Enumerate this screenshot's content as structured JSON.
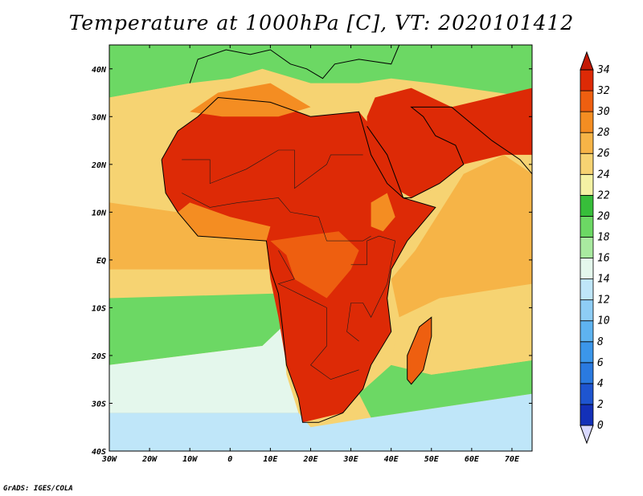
{
  "title": "Temperature at 1000hPa [C], VT: 2020101412",
  "credit": "GrADS: IGES/COLA",
  "map": {
    "lon_range": [
      -30,
      75
    ],
    "lat_range": [
      -40,
      45
    ],
    "lon_ticks": [
      {
        "lon": -30,
        "label": "30W"
      },
      {
        "lon": -20,
        "label": "20W"
      },
      {
        "lon": -10,
        "label": "10W"
      },
      {
        "lon": 0,
        "label": "0"
      },
      {
        "lon": 10,
        "label": "10E"
      },
      {
        "lon": 20,
        "label": "20E"
      },
      {
        "lon": 30,
        "label": "30E"
      },
      {
        "lon": 40,
        "label": "40E"
      },
      {
        "lon": 50,
        "label": "50E"
      },
      {
        "lon": 60,
        "label": "60E"
      },
      {
        "lon": 70,
        "label": "70E"
      }
    ],
    "lat_ticks": [
      {
        "lat": 40,
        "label": "40N"
      },
      {
        "lat": 30,
        "label": "30N"
      },
      {
        "lat": 20,
        "label": "20N"
      },
      {
        "lat": 10,
        "label": "10N"
      },
      {
        "lat": 0,
        "label": "EQ"
      },
      {
        "lat": -10,
        "label": "10S"
      },
      {
        "lat": -20,
        "label": "20S"
      },
      {
        "lat": -30,
        "label": "30S"
      },
      {
        "lat": -40,
        "label": "40S"
      }
    ]
  },
  "colorbar": {
    "levels": [
      0,
      2,
      4,
      6,
      8,
      10,
      12,
      14,
      16,
      18,
      20,
      22,
      24,
      26,
      28,
      30,
      32,
      34
    ],
    "labels": [
      "0",
      "2",
      "4",
      "6",
      "8",
      "10",
      "12",
      "14",
      "16",
      "18",
      "20",
      "22",
      "24",
      "26",
      "28",
      "30",
      "32",
      "34"
    ],
    "colors": [
      "#0b1a78",
      "#1330b8",
      "#1e55d0",
      "#2a7ae0",
      "#3b96ea",
      "#5eb3f0",
      "#8ecdf5",
      "#bfe6f9",
      "#e4f7ec",
      "#a9eaa0",
      "#6cd864",
      "#37be3a",
      "#f4f2a4",
      "#f6d372",
      "#f6b447",
      "#f48d22",
      "#ee5f10",
      "#dd2a06",
      "#c41a05"
    ]
  },
  "regions": [
    {
      "name": "north-coast-green",
      "temp": 19,
      "coords": [
        [
          -30,
          45
        ],
        [
          75,
          45
        ],
        [
          75,
          34
        ],
        [
          50,
          37
        ],
        [
          40,
          38
        ],
        [
          32,
          37
        ],
        [
          20,
          37
        ],
        [
          8,
          40
        ],
        [
          0,
          38
        ],
        [
          -10,
          37
        ],
        [
          -30,
          34
        ]
      ]
    },
    {
      "name": "atlantic-north-yellow",
      "temp": 24,
      "coords": [
        [
          -30,
          34
        ],
        [
          -10,
          37
        ],
        [
          -8,
          28
        ],
        [
          -15,
          23
        ],
        [
          -16,
          15
        ],
        [
          -13,
          10
        ],
        [
          -30,
          12
        ]
      ]
    },
    {
      "name": "atlantic-tropical",
      "temp": 27,
      "coords": [
        [
          -30,
          12
        ],
        [
          -13,
          10
        ],
        [
          -8,
          5
        ],
        [
          9,
          4
        ],
        [
          10,
          -2
        ],
        [
          -30,
          -2
        ]
      ]
    },
    {
      "name": "atlantic-equatorial",
      "temp": 24,
      "coords": [
        [
          -30,
          -2
        ],
        [
          10,
          -2
        ],
        [
          12,
          -7
        ],
        [
          -30,
          -8
        ]
      ]
    },
    {
      "name": "atlantic-green-band",
      "temp": 19,
      "coords": [
        [
          -30,
          -8
        ],
        [
          12,
          -7
        ],
        [
          13,
          -14
        ],
        [
          8,
          -18
        ],
        [
          -30,
          -22
        ]
      ]
    },
    {
      "name": "atlantic-lightblue",
      "temp": 15,
      "coords": [
        [
          -30,
          -22
        ],
        [
          8,
          -18
        ],
        [
          13,
          -14
        ],
        [
          14,
          -24
        ],
        [
          17,
          -32
        ],
        [
          -30,
          -32
        ]
      ]
    },
    {
      "name": "southern-ocean-blue",
      "temp": 12,
      "coords": [
        [
          -30,
          -32
        ],
        [
          17,
          -32
        ],
        [
          20,
          -35
        ],
        [
          35,
          -33
        ],
        [
          75,
          -28
        ],
        [
          75,
          -40
        ],
        [
          -30,
          -40
        ]
      ]
    },
    {
      "name": "indian-ocean-south",
      "temp": 19,
      "coords": [
        [
          35,
          -33
        ],
        [
          32,
          -28
        ],
        [
          40,
          -22
        ],
        [
          50,
          -24
        ],
        [
          75,
          -21
        ],
        [
          75,
          -28
        ]
      ]
    },
    {
      "name": "indian-ocean-mid",
      "temp": 24,
      "coords": [
        [
          40,
          -22
        ],
        [
          42,
          -12
        ],
        [
          52,
          -8
        ],
        [
          75,
          -5
        ],
        [
          75,
          -21
        ],
        [
          50,
          -24
        ]
      ]
    },
    {
      "name": "indian-ocean-warm",
      "temp": 27,
      "coords": [
        [
          40,
          -4
        ],
        [
          46,
          2
        ],
        [
          52,
          10
        ],
        [
          58,
          18
        ],
        [
          68,
          22
        ],
        [
          75,
          18
        ],
        [
          75,
          -5
        ],
        [
          52,
          -8
        ],
        [
          42,
          -12
        ]
      ]
    },
    {
      "name": "africa-north-land",
      "temp": 33,
      "coords": [
        [
          -17,
          21
        ],
        [
          -13,
          27
        ],
        [
          -8,
          30
        ],
        [
          -3,
          34
        ],
        [
          10,
          33
        ],
        [
          20,
          30
        ],
        [
          32,
          31
        ],
        [
          35,
          28
        ],
        [
          39,
          22
        ],
        [
          43,
          13
        ],
        [
          51,
          11
        ],
        [
          44,
          4
        ],
        [
          40,
          -2
        ],
        [
          39,
          -8
        ],
        [
          40,
          -15
        ],
        [
          35,
          -22
        ],
        [
          33,
          -27
        ],
        [
          28,
          -32
        ],
        [
          18,
          -34
        ],
        [
          17,
          -29
        ],
        [
          14,
          -22
        ],
        [
          12,
          -12
        ],
        [
          10,
          -4
        ],
        [
          9,
          4
        ],
        [
          -8,
          5
        ],
        [
          -13,
          10
        ],
        [
          -16,
          14
        ]
      ]
    },
    {
      "name": "maghreb-warm",
      "temp": 29,
      "coords": [
        [
          -10,
          31
        ],
        [
          -3,
          35
        ],
        [
          10,
          37
        ],
        [
          20,
          32
        ],
        [
          12,
          30
        ],
        [
          -2,
          30
        ]
      ]
    },
    {
      "name": "arabia-hot",
      "temp": 33,
      "coords": [
        [
          34,
          30
        ],
        [
          36,
          34
        ],
        [
          45,
          36
        ],
        [
          55,
          32
        ],
        [
          75,
          36
        ],
        [
          75,
          22
        ],
        [
          68,
          22
        ],
        [
          58,
          20
        ],
        [
          52,
          16
        ],
        [
          45,
          13
        ],
        [
          39,
          16
        ],
        [
          34,
          26
        ]
      ]
    },
    {
      "name": "gulf-guinea-coast",
      "temp": 28,
      "coords": [
        [
          -13,
          10
        ],
        [
          -8,
          5
        ],
        [
          9,
          4
        ],
        [
          10,
          7
        ],
        [
          0,
          9
        ],
        [
          -10,
          12
        ]
      ]
    },
    {
      "name": "congo-basin",
      "temp": 30,
      "coords": [
        [
          10,
          4
        ],
        [
          14,
          1
        ],
        [
          16,
          -4
        ],
        [
          24,
          -8
        ],
        [
          30,
          -2
        ],
        [
          32,
          2
        ],
        [
          27,
          6
        ],
        [
          18,
          5
        ]
      ]
    },
    {
      "name": "ethiopia-highlands",
      "temp": 28,
      "coords": [
        [
          35,
          12
        ],
        [
          39,
          14
        ],
        [
          41,
          9
        ],
        [
          38,
          6
        ],
        [
          35,
          7
        ]
      ]
    },
    {
      "name": "madagascar",
      "temp": 31,
      "coords": [
        [
          44,
          -25
        ],
        [
          44,
          -20
        ],
        [
          47,
          -14
        ],
        [
          50,
          -12
        ],
        [
          50,
          -16
        ],
        [
          48,
          -23
        ],
        [
          45,
          -26
        ]
      ]
    }
  ],
  "coastlines": [
    {
      "name": "africa-coast",
      "coords": [
        [
          -17,
          21
        ],
        [
          -16,
          14
        ],
        [
          -13,
          10
        ],
        [
          -8,
          5
        ],
        [
          9,
          4
        ],
        [
          10,
          -2
        ],
        [
          12,
          -7
        ],
        [
          13,
          -14
        ],
        [
          14,
          -22
        ],
        [
          17,
          -29
        ],
        [
          18,
          -34
        ],
        [
          22,
          -34
        ],
        [
          28,
          -32
        ],
        [
          33,
          -27
        ],
        [
          35,
          -22
        ],
        [
          40,
          -15
        ],
        [
          39,
          -8
        ],
        [
          40,
          -2
        ],
        [
          44,
          4
        ],
        [
          51,
          11
        ],
        [
          43,
          13
        ],
        [
          39,
          16
        ],
        [
          35,
          22
        ],
        [
          33,
          28
        ],
        [
          32,
          31
        ],
        [
          20,
          30
        ],
        [
          10,
          33
        ],
        [
          -3,
          34
        ],
        [
          -8,
          30
        ],
        [
          -13,
          27
        ],
        [
          -17,
          21
        ]
      ]
    },
    {
      "name": "arabia-coast",
      "coords": [
        [
          34,
          28
        ],
        [
          39,
          22
        ],
        [
          43,
          13
        ],
        [
          45,
          13
        ],
        [
          52,
          16
        ],
        [
          58,
          20
        ],
        [
          56,
          24
        ],
        [
          51,
          26
        ],
        [
          48,
          30
        ],
        [
          45,
          32
        ],
        [
          55,
          32
        ],
        [
          65,
          25
        ],
        [
          72,
          21
        ],
        [
          75,
          18
        ]
      ]
    },
    {
      "name": "europe-coast",
      "coords": [
        [
          -10,
          37
        ],
        [
          -8,
          42
        ],
        [
          -1,
          44
        ],
        [
          5,
          43
        ],
        [
          10,
          44
        ],
        [
          15,
          41
        ],
        [
          19,
          40
        ],
        [
          23,
          38
        ],
        [
          26,
          41
        ],
        [
          32,
          42
        ],
        [
          40,
          41
        ],
        [
          42,
          45
        ]
      ]
    },
    {
      "name": "madagascar-coast",
      "coords": [
        [
          44,
          -25
        ],
        [
          44,
          -20
        ],
        [
          47,
          -14
        ],
        [
          50,
          -12
        ],
        [
          50,
          -16
        ],
        [
          48,
          -23
        ],
        [
          45,
          -26
        ],
        [
          44,
          -25
        ]
      ]
    }
  ],
  "borders": [
    {
      "name": "sahara-borders",
      "coords": [
        [
          -12,
          21
        ],
        [
          -5,
          21
        ],
        [
          -5,
          16
        ],
        [
          4,
          19
        ],
        [
          12,
          23
        ],
        [
          16,
          23
        ],
        [
          16,
          15
        ],
        [
          24,
          20
        ],
        [
          25,
          22
        ],
        [
          33,
          22
        ]
      ]
    },
    {
      "name": "sahel-borders",
      "coords": [
        [
          -12,
          14
        ],
        [
          -5,
          11
        ],
        [
          2,
          12
        ],
        [
          12,
          13
        ],
        [
          15,
          10
        ],
        [
          22,
          9
        ],
        [
          24,
          4
        ],
        [
          33,
          4
        ],
        [
          35,
          5
        ]
      ]
    },
    {
      "name": "central-borders",
      "coords": [
        [
          12,
          2
        ],
        [
          16,
          -4
        ],
        [
          12,
          -5
        ],
        [
          24,
          -10
        ],
        [
          24,
          -18
        ],
        [
          20,
          -22
        ],
        [
          25,
          -25
        ],
        [
          32,
          -23
        ]
      ]
    },
    {
      "name": "east-borders",
      "coords": [
        [
          30,
          -1
        ],
        [
          34,
          -1
        ],
        [
          34,
          4
        ],
        [
          37,
          5
        ],
        [
          41,
          4
        ],
        [
          39,
          -5
        ],
        [
          35,
          -12
        ],
        [
          33,
          -9
        ],
        [
          30,
          -9
        ],
        [
          29,
          -15
        ],
        [
          32,
          -17
        ]
      ]
    }
  ]
}
